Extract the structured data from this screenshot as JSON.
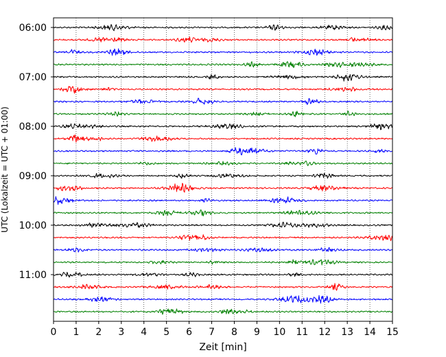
{
  "chart_data": {
    "type": "line",
    "title": "",
    "xlabel": "Zeit  [min]",
    "ylabel": "UTC (Lokalzeit = UTC + 01:00)",
    "xlim": [
      0,
      15
    ],
    "x_ticks": [
      0,
      1,
      2,
      3,
      4,
      5,
      6,
      7,
      8,
      9,
      10,
      11,
      12,
      13,
      14,
      15
    ],
    "y_tick_labels": [
      "06:00",
      "07:00",
      "08:00",
      "09:00",
      "10:00",
      "11:00"
    ],
    "grid": "vertical dotted lines at each minute",
    "trace_interval_minutes": 15,
    "traces": [
      {
        "start": "06:00",
        "color": "#000000"
      },
      {
        "start": "06:15",
        "color": "#ff0000"
      },
      {
        "start": "06:30",
        "color": "#0000ff"
      },
      {
        "start": "06:45",
        "color": "#008000"
      },
      {
        "start": "07:00",
        "color": "#000000"
      },
      {
        "start": "07:15",
        "color": "#ff0000"
      },
      {
        "start": "07:30",
        "color": "#0000ff"
      },
      {
        "start": "07:45",
        "color": "#008000"
      },
      {
        "start": "08:00",
        "color": "#000000"
      },
      {
        "start": "08:15",
        "color": "#ff0000"
      },
      {
        "start": "08:30",
        "color": "#0000ff"
      },
      {
        "start": "08:45",
        "color": "#008000"
      },
      {
        "start": "09:00",
        "color": "#000000"
      },
      {
        "start": "09:15",
        "color": "#ff0000"
      },
      {
        "start": "09:30",
        "color": "#0000ff"
      },
      {
        "start": "09:45",
        "color": "#008000"
      },
      {
        "start": "10:00",
        "color": "#000000"
      },
      {
        "start": "10:15",
        "color": "#ff0000"
      },
      {
        "start": "10:30",
        "color": "#0000ff"
      },
      {
        "start": "10:45",
        "color": "#008000"
      },
      {
        "start": "11:00",
        "color": "#000000"
      },
      {
        "start": "11:15",
        "color": "#ff0000"
      },
      {
        "start": "11:30",
        "color": "#0000ff"
      },
      {
        "start": "11:45",
        "color": "#008000"
      }
    ]
  }
}
